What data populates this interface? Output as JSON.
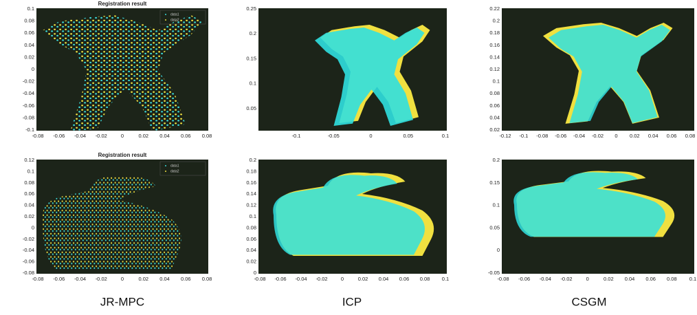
{
  "panels": [
    {
      "title": "Registration result",
      "legend": [
        "data1",
        "data2"
      ],
      "yticks": [
        "0.1",
        "0.08",
        "0.06",
        "0.04",
        "0.02",
        "0",
        "-0.02",
        "-0.04",
        "-0.06",
        "-0.08",
        "-0.1"
      ],
      "xticks": [
        "-0.08",
        "-0.06",
        "-0.04",
        "-0.02",
        "0",
        "0.02",
        "0.04",
        "0.06",
        "0.08"
      ]
    },
    {
      "yticks": [
        "0.25",
        "0.2",
        "0.15",
        "0.1",
        "0.05"
      ],
      "xticks": [
        "-0.1",
        "-0.05",
        "0",
        "0.05",
        "0.1"
      ]
    },
    {
      "yticks": [
        "0.22",
        "0.2",
        "0.18",
        "0.16",
        "0.14",
        "0.12",
        "0.1",
        "0.08",
        "0.06",
        "0.04",
        "0.02"
      ],
      "xticks": [
        "-0.12",
        "-0.1",
        "-0.08",
        "-0.06",
        "-0.04",
        "-0.02",
        "0",
        "0.02",
        "0.04",
        "0.06",
        "0.08"
      ]
    },
    {
      "title": "Registration result",
      "legend": [
        "data1",
        "data2"
      ],
      "yticks": [
        "0.12",
        "0.1",
        "0.08",
        "0.06",
        "0.04",
        "0.02",
        "0",
        "-0.02",
        "-0.04",
        "-0.06",
        "-0.08"
      ],
      "xticks": [
        "-0.08",
        "-0.06",
        "-0.04",
        "-0.02",
        "0",
        "0.02",
        "0.04",
        "0.06",
        "0.08"
      ]
    },
    {
      "yticks": [
        "0.2",
        "0.18",
        "0.16",
        "0.14",
        "0.12",
        "0.1",
        "0.08",
        "0.06",
        "0.04",
        "0.02",
        "0"
      ],
      "xticks": [
        "-0.08",
        "-0.06",
        "-0.04",
        "-0.02",
        "0",
        "0.02",
        "0.04",
        "0.06",
        "0.08",
        "0.1"
      ]
    },
    {
      "yticks": [
        "0.2",
        "0.15",
        "0.1",
        "0.05",
        "0",
        "-0.05"
      ],
      "xticks": [
        "-0.08",
        "-0.06",
        "-0.04",
        "-0.02",
        "0",
        "0.02",
        "0.04",
        "0.06",
        "0.08",
        "0.1"
      ]
    }
  ],
  "captions": [
    "JR-MPC",
    "ICP",
    "CSGM"
  ]
}
